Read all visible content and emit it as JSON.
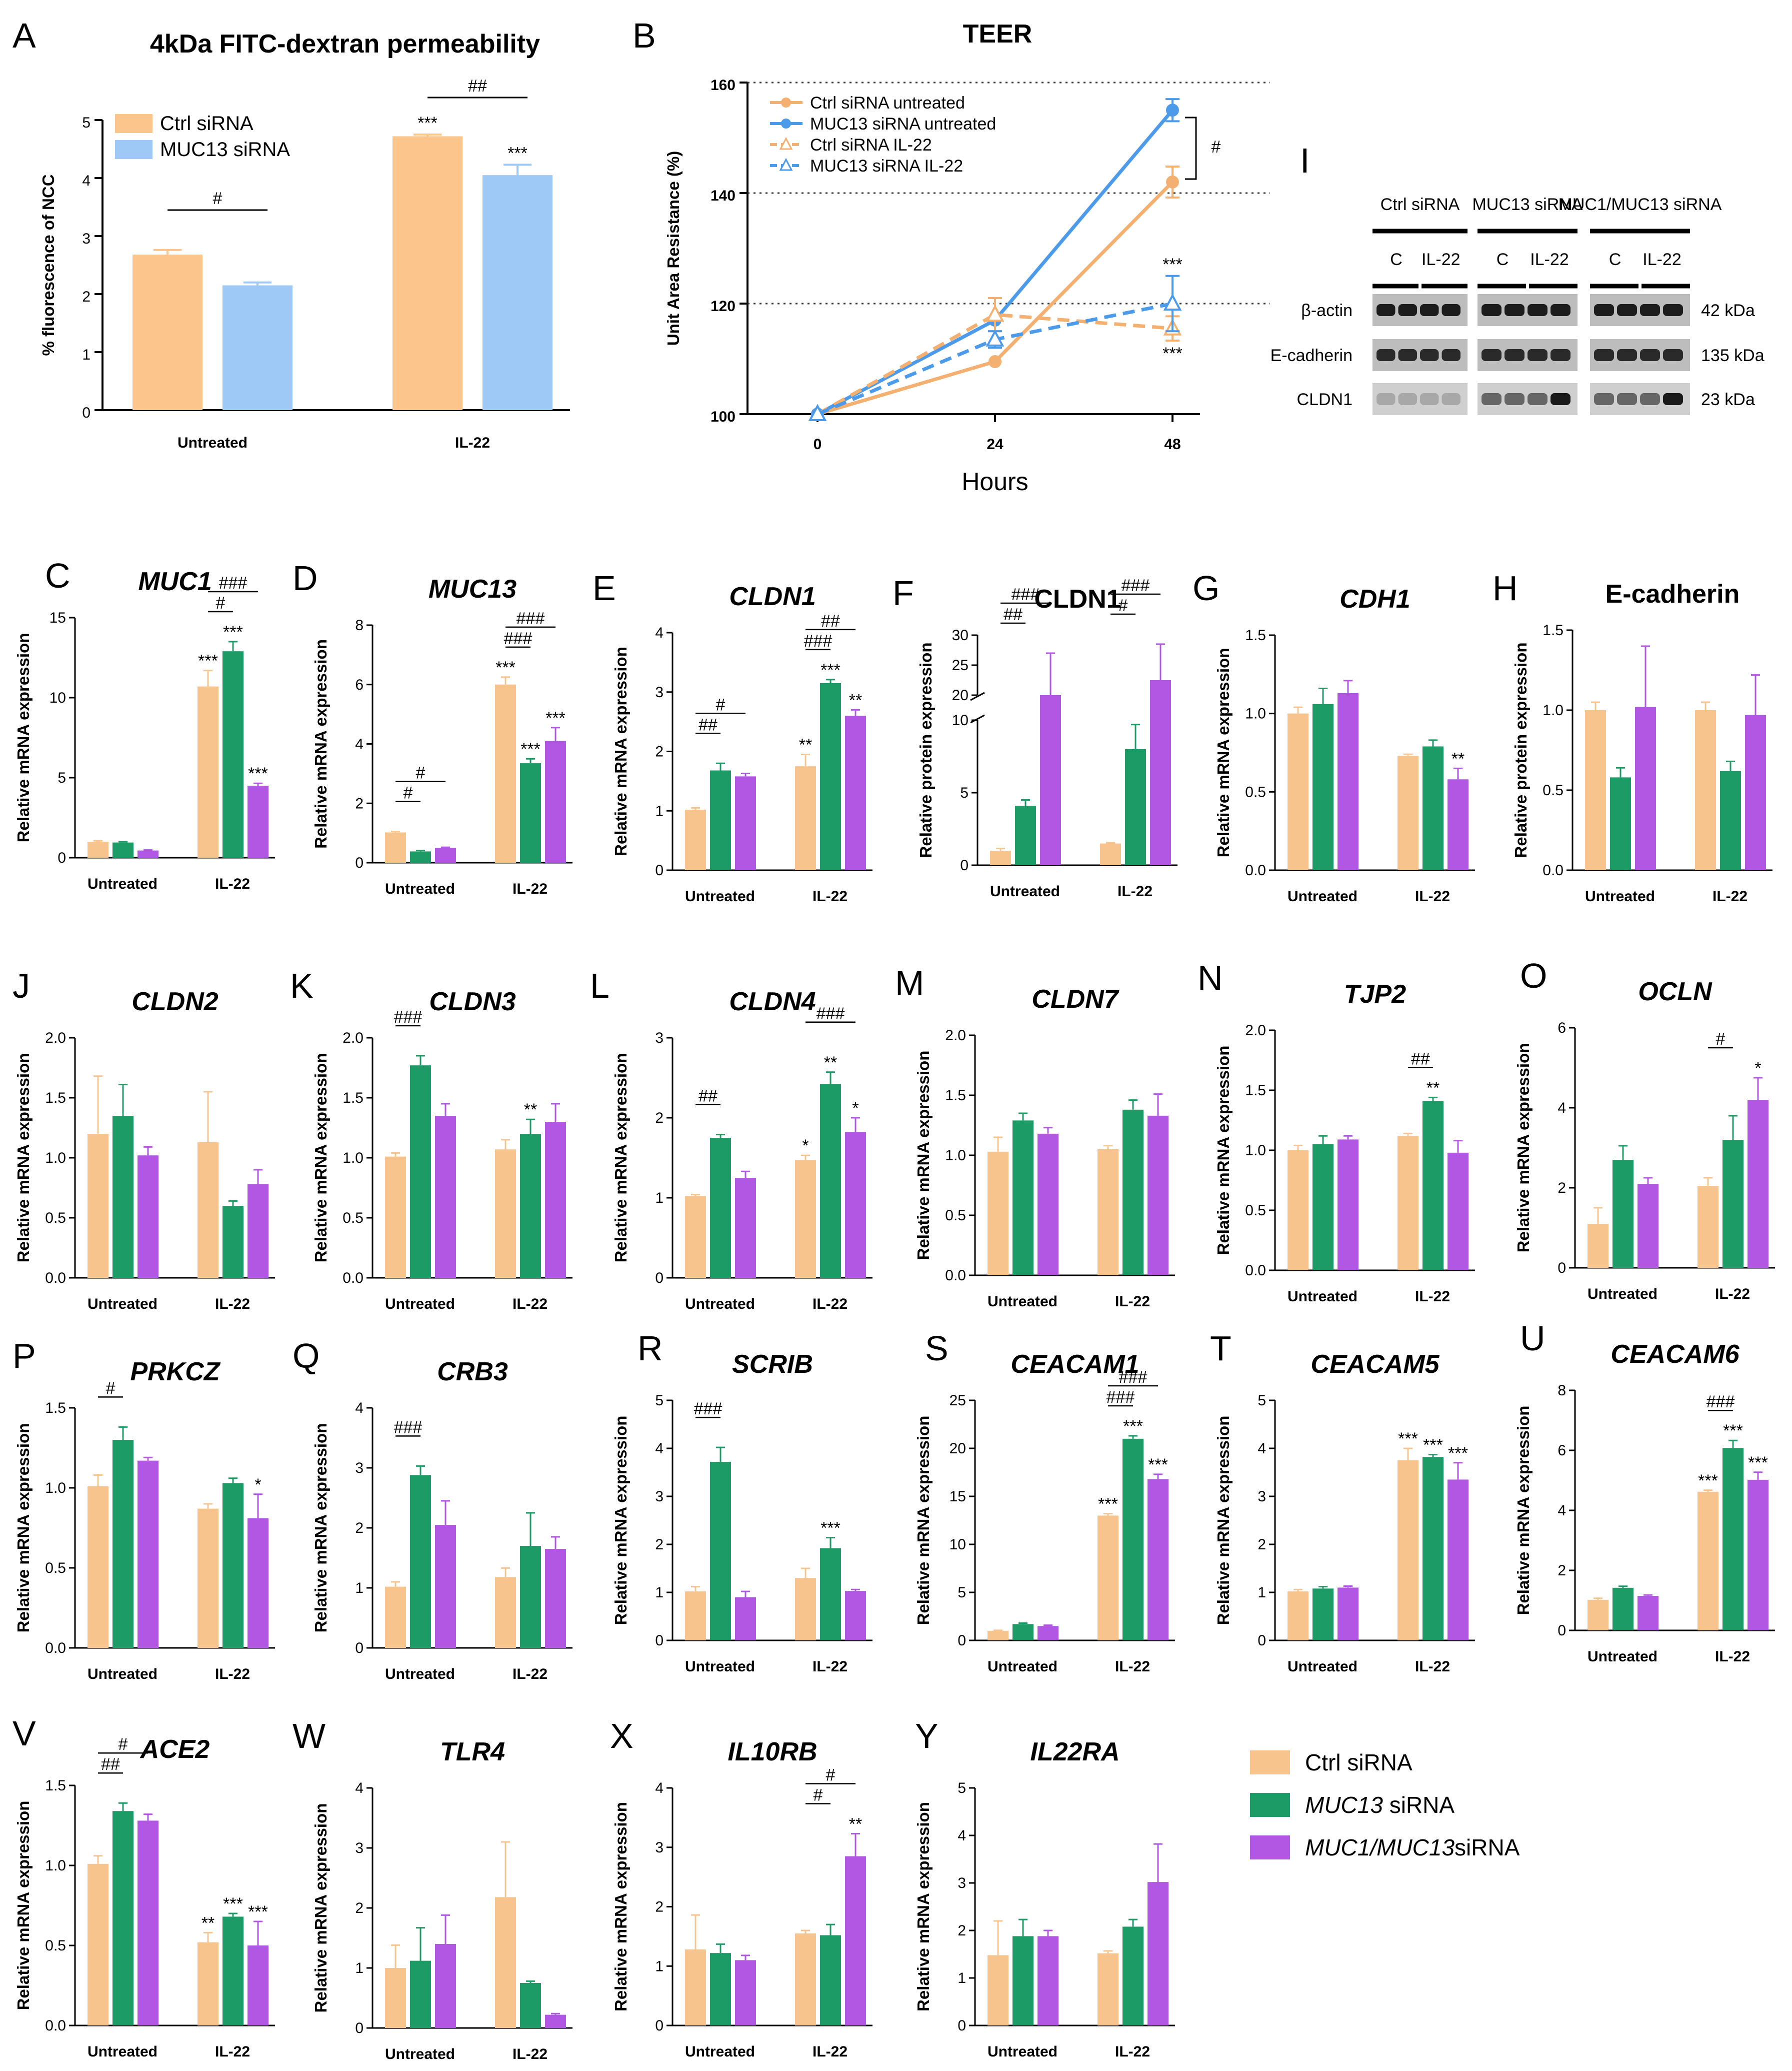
{
  "colors": {
    "ctrl": "#F8C48E",
    "muc13": "#1C9B67",
    "muc1muc13": "#B257E3",
    "ctrl_light": "#FBC58C",
    "muc13_light": "#9EC8F5",
    "teer_ctrl": "#F4B070",
    "teer_muc13": "#4C9BEA"
  },
  "legend": {
    "items": [
      "Ctrl siRNA",
      "MUC13 siRNA",
      "MUC1/MUC13siRNA"
    ],
    "italic_parts": [
      "",
      "MUC13",
      "MUC1/MUC13"
    ]
  },
  "blot": {
    "label": "I",
    "groups": [
      "Ctrl siRNA",
      "MUC13 siRNA",
      "MUC1/MUC13 siRNA"
    ],
    "lanes": [
      "C",
      "IL-22",
      "C",
      "IL-22",
      "C",
      "IL-22"
    ],
    "proteins": [
      "β-actin",
      "E-cadherin",
      "CLDN1"
    ],
    "sizes": [
      "42 kDa",
      "135 kDa",
      "23 kDa"
    ]
  },
  "chart_data": [
    {
      "id": "A",
      "type": "bar",
      "title": "4kDa FITC-dextran permeability",
      "ylabel": "% fluorescence of NCC",
      "ylim": [
        0,
        5
      ],
      "yticks": [
        0,
        1,
        2,
        3,
        4,
        5
      ],
      "categories": [
        "Untreated",
        "IL-22"
      ],
      "series": [
        {
          "name": "Ctrl siRNA",
          "values": [
            2.68,
            4.72
          ],
          "errors": [
            0.08,
            0.03
          ]
        },
        {
          "name": "MUC13 siRNA",
          "values": [
            2.15,
            4.05
          ],
          "errors": [
            0.05,
            0.18
          ]
        }
      ],
      "annotations": [
        {
          "text": "#",
          "between": "Untreated"
        },
        {
          "text": "##",
          "between": "IL-22"
        },
        {
          "text": "***",
          "bar": "IL-22 Ctrl siRNA"
        },
        {
          "text": "***",
          "bar": "IL-22 MUC13 siRNA"
        }
      ]
    },
    {
      "id": "B",
      "type": "line",
      "title": "TEER",
      "xlabel": "Hours",
      "ylabel": "Unit Area Resistance (%)",
      "x": [
        0,
        24,
        48
      ],
      "ylim": [
        100,
        160
      ],
      "yticks": [
        100,
        120,
        140,
        160
      ],
      "series": [
        {
          "name": "Ctrl siRNA untreated",
          "values": [
            100,
            109.5,
            142
          ],
          "errors": [
            0,
            0,
            2.8
          ]
        },
        {
          "name": "MUC13 siRNA untreated",
          "values": [
            100,
            117,
            155
          ],
          "errors": [
            0,
            0,
            2
          ]
        },
        {
          "name": "Ctrl siRNA IL-22",
          "values": [
            100,
            118,
            115.5
          ],
          "errors": [
            0,
            3,
            2.2
          ]
        },
        {
          "name": "MUC13 siRNA IL-22",
          "values": [
            100,
            113.5,
            120
          ],
          "errors": [
            0,
            1.5,
            5
          ]
        }
      ],
      "annotations": [
        "#",
        "***",
        "***"
      ]
    },
    {
      "id": "C",
      "title": "MUC1",
      "ylabel": "Relative mRNA expression",
      "ylim": [
        0,
        15
      ],
      "yticks": [
        0,
        5,
        10,
        15
      ],
      "categories": [
        "Untreated",
        "IL-22"
      ],
      "values": [
        [
          1.0,
          0.95,
          0.45
        ],
        [
          10.7,
          12.9,
          4.5
        ]
      ],
      "errors": [
        [
          0.05,
          0.05,
          0.03
        ],
        [
          1.0,
          0.6,
          0.15
        ]
      ],
      "sig": [
        "",
        "",
        "",
        "***",
        "***",
        "***"
      ],
      "hash": [
        "#",
        "###"
      ]
    },
    {
      "id": "D",
      "title": "MUC13",
      "ylabel": "Relative mRNA expression",
      "ylim": [
        0,
        8
      ],
      "yticks": [
        0,
        2,
        4,
        6,
        8
      ],
      "categories": [
        "Untreated",
        "IL-22"
      ],
      "values": [
        [
          1.02,
          0.38,
          0.5
        ],
        [
          6.0,
          3.35,
          4.1
        ]
      ],
      "errors": [
        [
          0.03,
          0.03,
          0.02
        ],
        [
          0.25,
          0.15,
          0.45
        ]
      ],
      "sig": [
        "",
        "",
        "",
        "***",
        "***",
        "***"
      ],
      "hash": [
        "#",
        "#",
        "###",
        "###"
      ]
    },
    {
      "id": "E",
      "title": "CLDN1",
      "ylabel": "Relative mRNA expression",
      "ylim": [
        0,
        4
      ],
      "yticks": [
        0,
        1,
        2,
        3,
        4
      ],
      "categories": [
        "Untreated",
        "IL-22"
      ],
      "values": [
        [
          1.02,
          1.68,
          1.58
        ],
        [
          1.75,
          3.15,
          2.6
        ]
      ],
      "errors": [
        [
          0.03,
          0.12,
          0.05
        ],
        [
          0.2,
          0.06,
          0.1
        ]
      ],
      "sig": [
        "",
        "",
        "",
        "**",
        "***",
        "**"
      ],
      "hash": [
        "##",
        "#",
        "###",
        "##"
      ]
    },
    {
      "id": "F",
      "title": "CLDN1",
      "ylabel": "Relative protein expression",
      "broken": true,
      "yticks": [
        0,
        5,
        10,
        20,
        25,
        30
      ],
      "categories": [
        "Untreated",
        "IL-22"
      ],
      "values": [
        [
          1.0,
          4.1,
          20
        ],
        [
          1.5,
          8.0,
          22.5
        ]
      ],
      "errors": [
        [
          0.15,
          0.4,
          7
        ],
        [
          0.05,
          1.7,
          6
        ]
      ],
      "sig": [
        "",
        "",
        "",
        "",
        "",
        ""
      ],
      "hash": [
        "##",
        "###",
        "#",
        "###"
      ]
    },
    {
      "id": "G",
      "title": "CDH1",
      "ylabel": "Relative mRNA expression",
      "ylim": [
        0,
        1.5
      ],
      "yticks": [
        0.0,
        0.5,
        1.0,
        1.5
      ],
      "categories": [
        "Untreated",
        "IL-22"
      ],
      "values": [
        [
          1.0,
          1.06,
          1.13
        ],
        [
          0.73,
          0.79,
          0.58
        ]
      ],
      "errors": [
        [
          0.04,
          0.1,
          0.08
        ],
        [
          0.01,
          0.04,
          0.07
        ]
      ],
      "sig": [
        "",
        "",
        "",
        "",
        "",
        "**"
      ],
      "hash": []
    },
    {
      "id": "H",
      "title": "E-cadherin",
      "ylabel": "Relative protein expression",
      "ylim": [
        0,
        1.5
      ],
      "yticks": [
        0.0,
        0.5,
        1.0,
        1.5
      ],
      "categories": [
        "Untreated",
        "IL-22"
      ],
      "values": [
        [
          1.0,
          0.58,
          1.02
        ],
        [
          1.0,
          0.62,
          0.97
        ]
      ],
      "errors": [
        [
          0.05,
          0.06,
          0.38
        ],
        [
          0.05,
          0.06,
          0.25
        ]
      ],
      "sig": [
        "",
        "",
        "",
        "",
        "",
        ""
      ],
      "hash": []
    },
    {
      "id": "J",
      "title": "CLDN2",
      "ylabel": "Relative mRNA expression",
      "ylim": [
        0,
        2.0
      ],
      "yticks": [
        0.0,
        0.5,
        1.0,
        1.5,
        2.0
      ],
      "categories": [
        "Untreated",
        "IL-22"
      ],
      "values": [
        [
          1.2,
          1.35,
          1.02
        ],
        [
          1.13,
          0.6,
          0.78
        ]
      ],
      "errors": [
        [
          0.48,
          0.26,
          0.07
        ],
        [
          0.42,
          0.04,
          0.12
        ]
      ],
      "sig": [
        "",
        "",
        "",
        "",
        "",
        ""
      ],
      "hash": []
    },
    {
      "id": "K",
      "title": "CLDN3",
      "ylabel": "Relative mRNA expression",
      "ylim": [
        0,
        2.0
      ],
      "yticks": [
        0.0,
        0.5,
        1.0,
        1.5,
        2.0
      ],
      "categories": [
        "Untreated",
        "IL-22"
      ],
      "values": [
        [
          1.01,
          1.77,
          1.35
        ],
        [
          1.07,
          1.2,
          1.3
        ]
      ],
      "errors": [
        [
          0.03,
          0.08,
          0.1
        ],
        [
          0.08,
          0.12,
          0.15
        ]
      ],
      "sig": [
        "",
        "",
        "",
        "",
        "**",
        ""
      ],
      "hash": [
        "###"
      ]
    },
    {
      "id": "L",
      "title": "CLDN4",
      "ylabel": "Relative mRNA expression",
      "ylim": [
        0,
        3
      ],
      "yticks": [
        0,
        1,
        2,
        3
      ],
      "categories": [
        "Untreated",
        "IL-22"
      ],
      "values": [
        [
          1.02,
          1.75,
          1.25
        ],
        [
          1.47,
          2.42,
          1.82
        ]
      ],
      "errors": [
        [
          0.02,
          0.04,
          0.08
        ],
        [
          0.06,
          0.15,
          0.18
        ]
      ],
      "sig": [
        "",
        "",
        "",
        "*",
        "**",
        "*"
      ],
      "hash": [
        "##",
        "###"
      ]
    },
    {
      "id": "M",
      "title": "CLDN7",
      "ylabel": "Relative mRNA expression",
      "ylim": [
        0,
        2.0
      ],
      "yticks": [
        0.0,
        0.5,
        1.0,
        1.5,
        2.0
      ],
      "categories": [
        "Untreated",
        "IL-22"
      ],
      "values": [
        [
          1.03,
          1.29,
          1.18
        ],
        [
          1.05,
          1.38,
          1.33
        ]
      ],
      "errors": [
        [
          0.12,
          0.06,
          0.05
        ],
        [
          0.03,
          0.08,
          0.18
        ]
      ],
      "sig": [
        "",
        "",
        "",
        "",
        "",
        ""
      ],
      "hash": []
    },
    {
      "id": "N",
      "title": "TJP2",
      "ylabel": "Relative mRNA expression",
      "ylim": [
        0,
        2.0
      ],
      "yticks": [
        0.0,
        0.5,
        1.0,
        1.5,
        2.0
      ],
      "categories": [
        "Untreated",
        "IL-22"
      ],
      "values": [
        [
          1.0,
          1.05,
          1.09
        ],
        [
          1.12,
          1.41,
          0.98
        ]
      ],
      "errors": [
        [
          0.04,
          0.07,
          0.03
        ],
        [
          0.02,
          0.03,
          0.1
        ]
      ],
      "sig": [
        "",
        "",
        "",
        "",
        "**",
        ""
      ],
      "hash": [
        "##"
      ]
    },
    {
      "id": "O",
      "title": "OCLN",
      "ylabel": "Relative mRNA expression",
      "ylim": [
        0,
        6
      ],
      "yticks": [
        0,
        2,
        4,
        6
      ],
      "categories": [
        "Untreated",
        "IL-22"
      ],
      "values": [
        [
          1.1,
          2.7,
          2.1
        ],
        [
          2.05,
          3.2,
          4.2
        ]
      ],
      "errors": [
        [
          0.4,
          0.35,
          0.15
        ],
        [
          0.2,
          0.6,
          0.55
        ]
      ],
      "sig": [
        "",
        "",
        "",
        "",
        "",
        "*"
      ],
      "hash": [
        "#"
      ]
    },
    {
      "id": "P",
      "title": "PRKCZ",
      "ylabel": "Relative mRNA expression",
      "ylim": [
        0,
        1.5
      ],
      "yticks": [
        0.0,
        0.5,
        1.0,
        1.5
      ],
      "categories": [
        "Untreated",
        "IL-22"
      ],
      "values": [
        [
          1.01,
          1.3,
          1.17
        ],
        [
          0.87,
          1.03,
          0.81
        ]
      ],
      "errors": [
        [
          0.07,
          0.08,
          0.02
        ],
        [
          0.03,
          0.03,
          0.15
        ]
      ],
      "sig": [
        "",
        "",
        "",
        "",
        "",
        "*"
      ],
      "hash": [
        "#"
      ]
    },
    {
      "id": "Q",
      "title": "CRB3",
      "ylabel": "Relative mRNA expression",
      "ylim": [
        0,
        4
      ],
      "yticks": [
        0,
        1,
        2,
        3,
        4
      ],
      "categories": [
        "Untreated",
        "IL-22"
      ],
      "values": [
        [
          1.02,
          2.88,
          2.05
        ],
        [
          1.18,
          1.7,
          1.65
        ]
      ],
      "errors": [
        [
          0.08,
          0.15,
          0.4
        ],
        [
          0.15,
          0.55,
          0.2
        ]
      ],
      "sig": [
        "",
        "",
        "",
        "",
        "",
        ""
      ],
      "hash": [
        "###"
      ]
    },
    {
      "id": "R",
      "title": "SCRIB",
      "ylabel": "Relative mRNA expression",
      "ylim": [
        0,
        5
      ],
      "yticks": [
        0,
        1,
        2,
        3,
        4,
        5
      ],
      "categories": [
        "Untreated",
        "IL-22"
      ],
      "values": [
        [
          1.02,
          3.72,
          0.9
        ],
        [
          1.3,
          1.92,
          1.03
        ]
      ],
      "errors": [
        [
          0.1,
          0.3,
          0.12
        ],
        [
          0.2,
          0.22,
          0.03
        ]
      ],
      "sig": [
        "",
        "",
        "",
        "",
        "***",
        ""
      ],
      "hash": [
        "###"
      ]
    },
    {
      "id": "S",
      "title": "CEACAM1",
      "ylabel": "Relative mRNA expression",
      "ylim": [
        0,
        25
      ],
      "yticks": [
        0,
        5,
        10,
        15,
        20,
        25
      ],
      "categories": [
        "Untreated",
        "IL-22"
      ],
      "values": [
        [
          1.0,
          1.7,
          1.5
        ],
        [
          13.0,
          21.0,
          16.8
        ]
      ],
      "errors": [
        [
          0.05,
          0.1,
          0.08
        ],
        [
          0.2,
          0.3,
          0.5
        ]
      ],
      "sig": [
        "",
        "",
        "",
        "***",
        "***",
        "***"
      ],
      "hash": [
        "###",
        "###"
      ]
    },
    {
      "id": "T",
      "title": "CEACAM5",
      "ylabel": "Relative mRNA expression",
      "ylim": [
        0,
        5
      ],
      "yticks": [
        0,
        1,
        2,
        3,
        4,
        5
      ],
      "categories": [
        "Untreated",
        "IL-22"
      ],
      "values": [
        [
          1.02,
          1.08,
          1.1
        ],
        [
          3.75,
          3.82,
          3.35
        ]
      ],
      "errors": [
        [
          0.04,
          0.04,
          0.03
        ],
        [
          0.25,
          0.05,
          0.35
        ]
      ],
      "sig": [
        "",
        "",
        "",
        "***",
        "***",
        "***"
      ],
      "hash": []
    },
    {
      "id": "U",
      "title": "CEACAM6",
      "ylabel": "Relative mRNA expression",
      "ylim": [
        0,
        8
      ],
      "yticks": [
        0,
        2,
        4,
        6,
        8
      ],
      "categories": [
        "Untreated",
        "IL-22"
      ],
      "values": [
        [
          1.02,
          1.42,
          1.15
        ],
        [
          4.62,
          6.08,
          5.02
        ]
      ],
      "errors": [
        [
          0.05,
          0.05,
          0.03
        ],
        [
          0.05,
          0.25,
          0.25
        ]
      ],
      "sig": [
        "",
        "",
        "",
        "***",
        "***",
        "***"
      ],
      "hash": [
        "###"
      ]
    },
    {
      "id": "V",
      "title": "ACE2",
      "ylabel": "Relative mRNA expression",
      "ylim": [
        0,
        1.5
      ],
      "yticks": [
        0.0,
        0.5,
        1.0,
        1.5
      ],
      "categories": [
        "Untreated",
        "IL-22"
      ],
      "values": [
        [
          1.01,
          1.34,
          1.28
        ],
        [
          0.52,
          0.68,
          0.5
        ]
      ],
      "errors": [
        [
          0.05,
          0.05,
          0.04
        ],
        [
          0.06,
          0.02,
          0.15
        ]
      ],
      "sig": [
        "",
        "",
        "",
        "**",
        "***",
        "***"
      ],
      "hash": [
        "##",
        "#"
      ]
    },
    {
      "id": "W",
      "title": "TLR4",
      "ylabel": "Relative mRNA expression",
      "ylim": [
        0,
        4
      ],
      "yticks": [
        0,
        1,
        2,
        3,
        4
      ],
      "categories": [
        "Untreated",
        "IL-22"
      ],
      "values": [
        [
          1.0,
          1.12,
          1.4
        ],
        [
          2.18,
          0.75,
          0.22
        ]
      ],
      "errors": [
        [
          0.38,
          0.55,
          0.48
        ],
        [
          0.92,
          0.03,
          0.02
        ]
      ],
      "sig": [
        "",
        "",
        "",
        "",
        "",
        ""
      ],
      "hash": []
    },
    {
      "id": "X",
      "title": "IL10RB",
      "ylabel": "Relative mRNA expression",
      "ylim": [
        0,
        4
      ],
      "yticks": [
        0,
        1,
        2,
        3,
        4
      ],
      "categories": [
        "Untreated",
        "IL-22"
      ],
      "values": [
        [
          1.28,
          1.22,
          1.1
        ],
        [
          1.55,
          1.52,
          2.85
        ]
      ],
      "errors": [
        [
          0.58,
          0.15,
          0.08
        ],
        [
          0.05,
          0.18,
          0.38
        ]
      ],
      "sig": [
        "",
        "",
        "",
        "",
        "",
        "**"
      ],
      "hash": [
        "#",
        "#"
      ]
    },
    {
      "id": "Y",
      "title": "IL22RA",
      "ylabel": "Relative mRNA expression",
      "ylim": [
        0,
        5
      ],
      "yticks": [
        0,
        1,
        2,
        3,
        4,
        5
      ],
      "categories": [
        "Untreated",
        "IL-22"
      ],
      "values": [
        [
          1.48,
          1.88,
          1.88
        ],
        [
          1.52,
          2.08,
          3.02
        ]
      ],
      "errors": [
        [
          0.72,
          0.35,
          0.12
        ],
        [
          0.05,
          0.15,
          0.8
        ]
      ],
      "sig": [
        "",
        "",
        "",
        "",
        "",
        ""
      ],
      "hash": []
    }
  ]
}
